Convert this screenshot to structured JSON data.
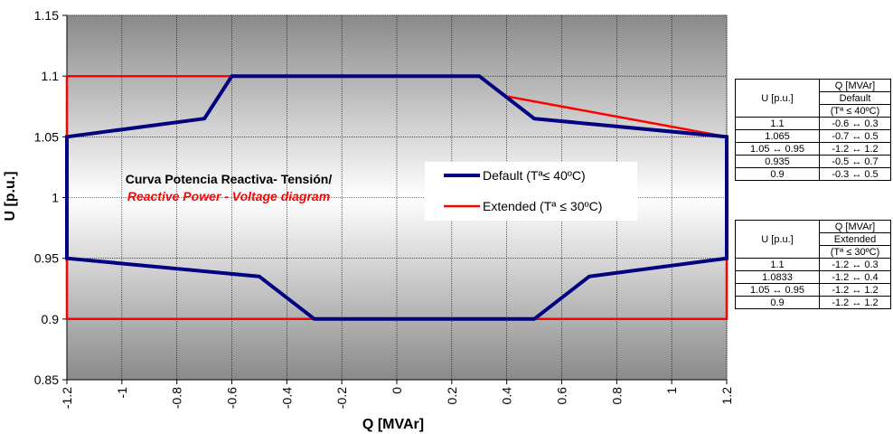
{
  "chart_data": {
    "type": "line",
    "title_line1": "Curva Potencia Reactiva- Tensión/",
    "title_line2": "Reactive Power - Voltage diagram",
    "xlabel": "Q [MVAr]",
    "ylabel": "U [p.u.]",
    "xlim": [
      -1.2,
      1.2
    ],
    "ylim": [
      0.85,
      1.15
    ],
    "x_ticks": [
      "-1.2",
      "-1",
      "-0.8",
      "-0.6",
      "-0.4",
      "-0.2",
      "0",
      "0.2",
      "0.4",
      "0.6",
      "0.8",
      "1",
      "1.2"
    ],
    "y_ticks": [
      "0.85",
      "0.9",
      "0.95",
      "1",
      "1.05",
      "1.1",
      "1.15"
    ],
    "grid": true,
    "legend_position": "center-right",
    "series": [
      {
        "name": "Default (Tª≤ 40ºC)",
        "color": "#000080",
        "points": [
          [
            -1.2,
            1.05
          ],
          [
            -0.7,
            1.065
          ],
          [
            -0.6,
            1.1
          ],
          [
            0.3,
            1.1
          ],
          [
            0.5,
            1.065
          ],
          [
            1.2,
            1.05
          ],
          [
            1.2,
            0.95
          ],
          [
            0.7,
            0.935
          ],
          [
            0.5,
            0.9
          ],
          [
            -0.3,
            0.9
          ],
          [
            -0.5,
            0.935
          ],
          [
            -1.2,
            0.95
          ]
        ]
      },
      {
        "name": "Extended (Tª ≤ 30ºC)",
        "color": "#ff0000",
        "points": [
          [
            -1.2,
            1.1
          ],
          [
            0.3,
            1.1
          ],
          [
            0.4,
            1.0833
          ],
          [
            1.2,
            1.05
          ],
          [
            1.2,
            0.9
          ],
          [
            -1.2,
            0.9
          ],
          [
            -1.2,
            1.1
          ]
        ]
      }
    ]
  },
  "tables": {
    "default": {
      "header_u": "U [p.u.]",
      "header_q1": "Q [MVAr]",
      "header_q2": "Default",
      "header_q3": "(Tª ≤ 40ºC)",
      "rows": [
        {
          "u": "1.1",
          "q": "-0.6 ↔ 0.3"
        },
        {
          "u": "1.065",
          "q": "-0.7 ↔ 0.5"
        },
        {
          "u": "1.05 ↔ 0.95",
          "q": "-1.2 ↔ 1.2"
        },
        {
          "u": "0.935",
          "q": "-0.5 ↔ 0.7"
        },
        {
          "u": "0.9",
          "q": "-0.3 ↔ 0.5"
        }
      ]
    },
    "extended": {
      "header_u": "U [p.u.]",
      "header_q1": "Q [MVAr]",
      "header_q2": "Extended",
      "header_q3": "(Tª ≤ 30ºC)",
      "rows": [
        {
          "u": "1.1",
          "q": "-1.2 ↔ 0.3"
        },
        {
          "u": "1.0833",
          "q": "-1.2 ↔ 0.4"
        },
        {
          "u": "1.05 ↔ 0.95",
          "q": "-1.2 ↔ 1.2"
        },
        {
          "u": "0.9",
          "q": "-1.2 ↔ 1.2"
        }
      ]
    }
  }
}
